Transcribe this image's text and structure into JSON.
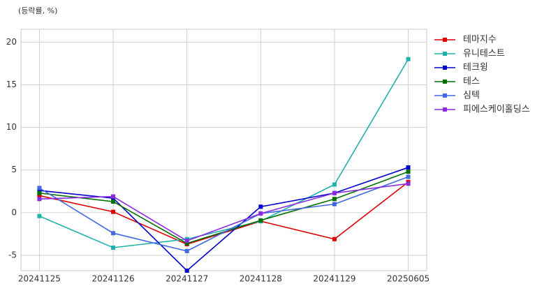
{
  "chart_data": {
    "type": "line",
    "y_label": "(등락률, %)",
    "categories": [
      "20241125",
      "20241126",
      "20241127",
      "20241128",
      "20241129",
      "20250605"
    ],
    "series": [
      {
        "name": "테마지수",
        "color": "#e00000",
        "values": [
          2.0,
          0.1,
          -3.7,
          -1.0,
          -3.1,
          3.6
        ]
      },
      {
        "name": "유니테스트",
        "color": "#20b2aa",
        "values": [
          -0.4,
          -4.1,
          -3.1,
          -1.0,
          3.3,
          18.0
        ]
      },
      {
        "name": "테크윙",
        "color": "#0000cd",
        "values": [
          2.6,
          1.7,
          -6.8,
          0.7,
          2.3,
          5.3
        ]
      },
      {
        "name": "테스",
        "color": "#007000",
        "values": [
          2.3,
          1.3,
          -3.6,
          -0.9,
          1.6,
          4.8
        ]
      },
      {
        "name": "심텍",
        "color": "#4169e1",
        "values": [
          2.9,
          -2.4,
          -4.5,
          -0.1,
          1.0,
          4.2
        ]
      },
      {
        "name": "피에스케이홀딩스",
        "color": "#8a2be2",
        "values": [
          1.6,
          1.9,
          -3.3,
          -0.1,
          2.3,
          3.4
        ]
      }
    ],
    "ylim": [
      -6.8,
      21.5
    ],
    "yticks": [
      -5,
      0,
      5,
      10,
      15,
      20
    ],
    "grid": true
  }
}
